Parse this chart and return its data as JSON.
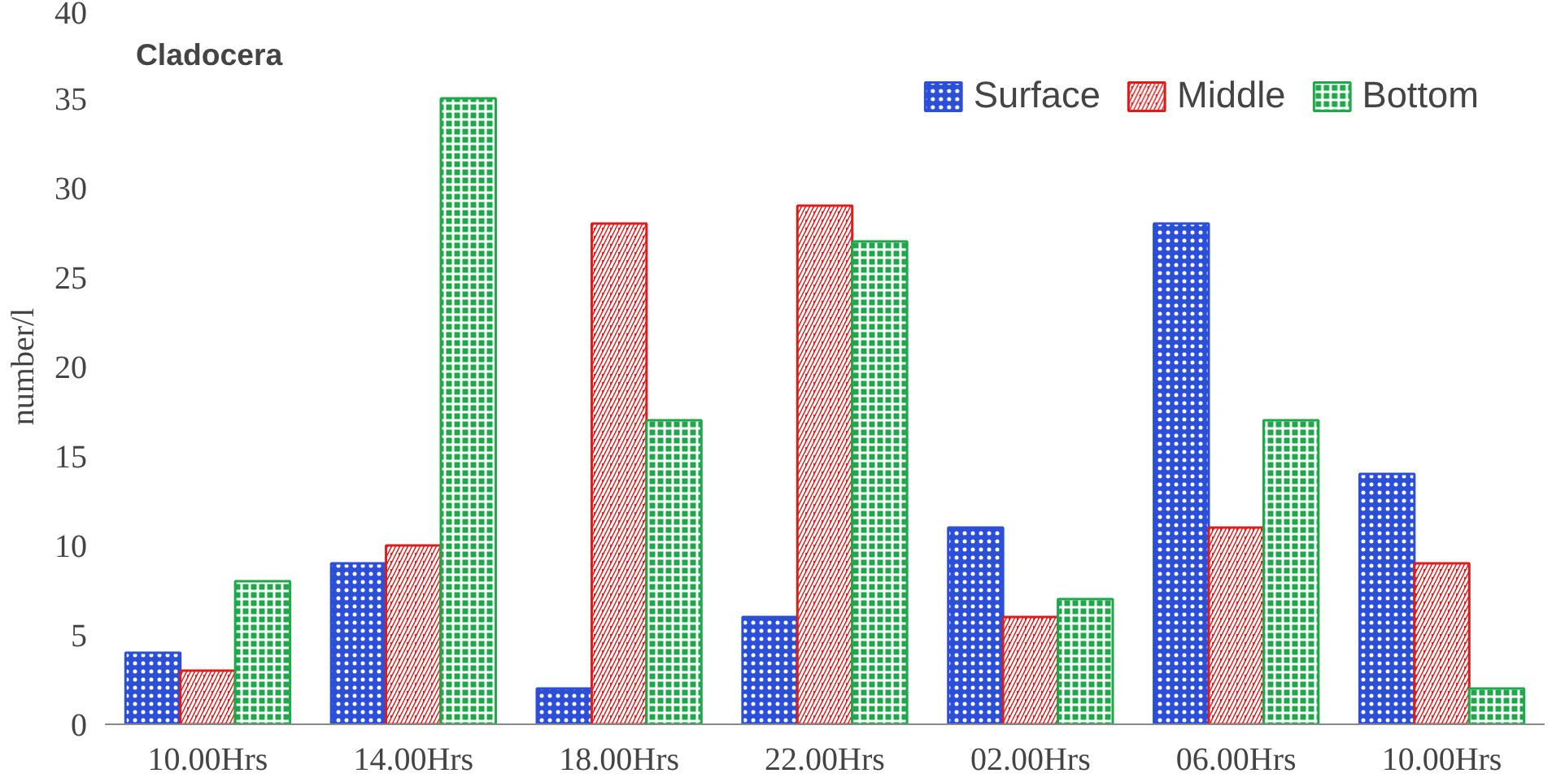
{
  "chart_data": {
    "type": "bar",
    "title": "Cladocera",
    "ylabel": "number/l",
    "categories": [
      "10.00Hrs",
      "14.00Hrs",
      "18.00Hrs",
      "22.00Hrs",
      "02.00Hrs",
      "06.00Hrs",
      "10.00Hrs"
    ],
    "series": [
      {
        "name": "Surface",
        "color": "#2b4fd6",
        "values": [
          4,
          9,
          2,
          6,
          11,
          28,
          14
        ]
      },
      {
        "name": "Middle",
        "color": "#e01b1b",
        "values": [
          3,
          10,
          28,
          29,
          6,
          11,
          9
        ]
      },
      {
        "name": "Bottom",
        "color": "#1fa84a",
        "values": [
          8,
          35,
          17,
          27,
          7,
          17,
          2
        ]
      }
    ],
    "ylim": [
      0,
      40
    ],
    "yticks": [
      0,
      5,
      10,
      15,
      20,
      25,
      30,
      35,
      40
    ],
    "grid": false,
    "legend": "top right"
  }
}
